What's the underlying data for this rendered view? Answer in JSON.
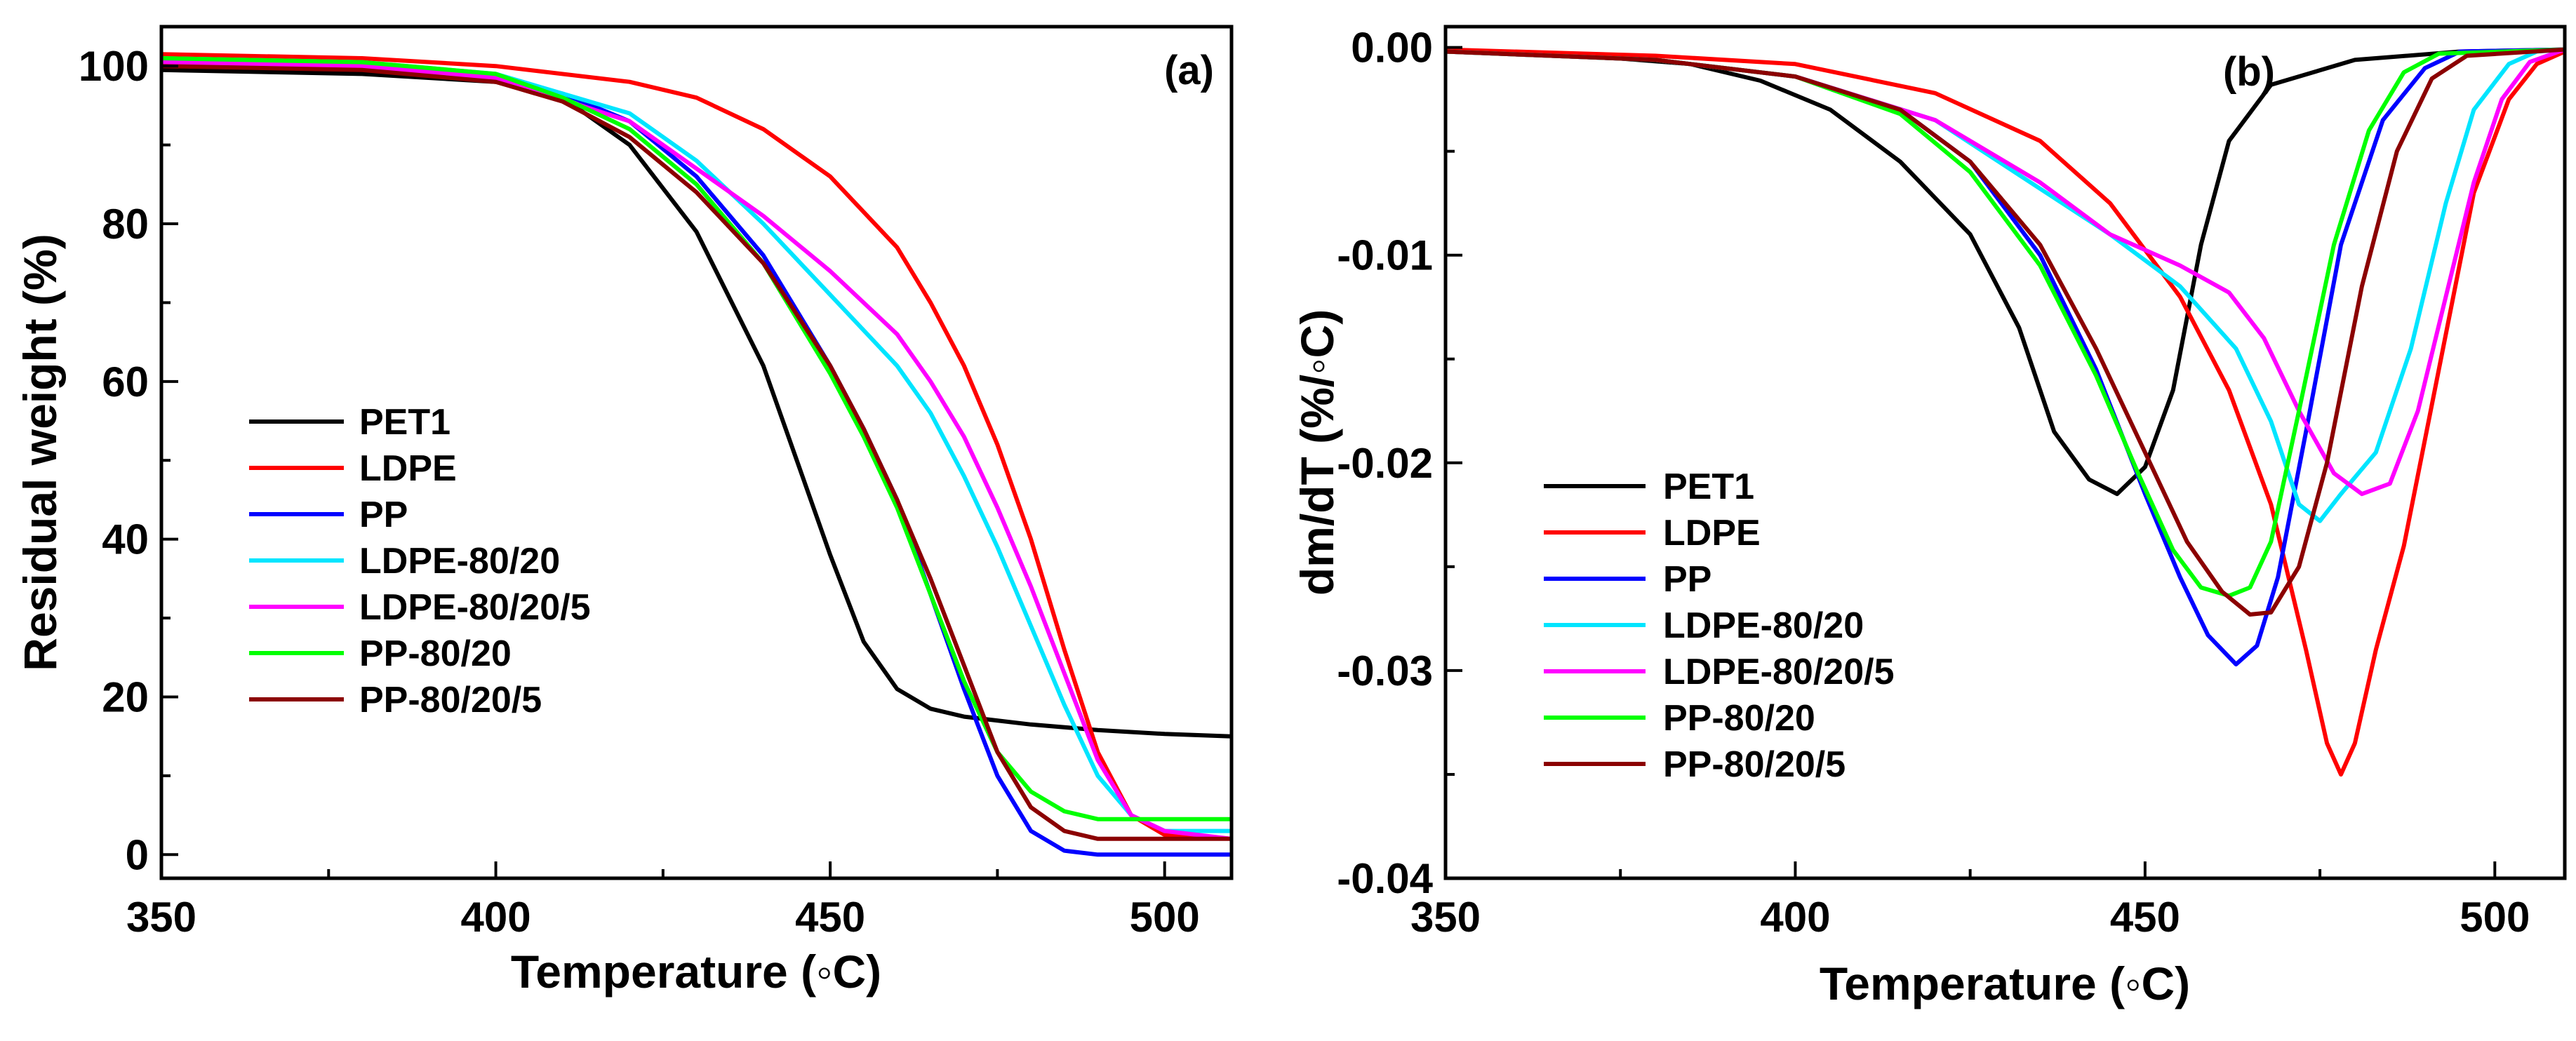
{
  "chart_data": [
    {
      "type": "line",
      "panel": "(a)",
      "xlabel": "Temperature (◦C)",
      "ylabel": "Residual weight (%)",
      "xlim": [
        350,
        510
      ],
      "ylim": [
        -3,
        105
      ],
      "xticks": [
        350,
        400,
        450,
        500
      ],
      "yticks": [
        0,
        20,
        40,
        60,
        80,
        100
      ],
      "legend_position": "center-left",
      "series": [
        {
          "name": "PET1",
          "color": "#000000",
          "points": [
            [
              350,
              99.5
            ],
            [
              380,
              99
            ],
            [
              400,
              98
            ],
            [
              410,
              96
            ],
            [
              420,
              90
            ],
            [
              430,
              79
            ],
            [
              440,
              62
            ],
            [
              445,
              50
            ],
            [
              450,
              38
            ],
            [
              455,
              27
            ],
            [
              460,
              21
            ],
            [
              465,
              18.5
            ],
            [
              470,
              17.5
            ],
            [
              480,
              16.5
            ],
            [
              490,
              15.8
            ],
            [
              500,
              15.3
            ],
            [
              510,
              15
            ]
          ]
        },
        {
          "name": "LDPE",
          "color": "#ff0000",
          "points": [
            [
              350,
              101.5
            ],
            [
              380,
              101
            ],
            [
              400,
              100
            ],
            [
              420,
              98
            ],
            [
              430,
              96
            ],
            [
              440,
              92
            ],
            [
              450,
              86
            ],
            [
              460,
              77
            ],
            [
              465,
              70
            ],
            [
              470,
              62
            ],
            [
              475,
              52
            ],
            [
              480,
              40
            ],
            [
              485,
              26
            ],
            [
              490,
              13
            ],
            [
              495,
              5
            ],
            [
              500,
              2.5
            ],
            [
              510,
              2
            ]
          ]
        },
        {
          "name": "PP",
          "color": "#0000ff",
          "points": [
            [
              350,
              100.5
            ],
            [
              380,
              100
            ],
            [
              400,
              98.5
            ],
            [
              410,
              96.5
            ],
            [
              420,
              93
            ],
            [
              430,
              86
            ],
            [
              440,
              76
            ],
            [
              450,
              62
            ],
            [
              455,
              54
            ],
            [
              460,
              45
            ],
            [
              465,
              33
            ],
            [
              470,
              21
            ],
            [
              475,
              10
            ],
            [
              480,
              3
            ],
            [
              485,
              0.5
            ],
            [
              490,
              0
            ],
            [
              510,
              0
            ]
          ]
        },
        {
          "name": "LDPE-80/20",
          "color": "#00e5ff",
          "points": [
            [
              350,
              101
            ],
            [
              380,
              100.5
            ],
            [
              400,
              99
            ],
            [
              420,
              94
            ],
            [
              430,
              88
            ],
            [
              440,
              80
            ],
            [
              450,
              71
            ],
            [
              460,
              62
            ],
            [
              465,
              56
            ],
            [
              470,
              48
            ],
            [
              475,
              39
            ],
            [
              480,
              29
            ],
            [
              485,
              19
            ],
            [
              490,
              10
            ],
            [
              495,
              5
            ],
            [
              500,
              3
            ],
            [
              510,
              3
            ]
          ]
        },
        {
          "name": "LDPE-80/20/5",
          "color": "#ff00ff",
          "points": [
            [
              350,
              100.5
            ],
            [
              380,
              100
            ],
            [
              400,
              98.5
            ],
            [
              420,
              93
            ],
            [
              430,
              87
            ],
            [
              440,
              81
            ],
            [
              450,
              74
            ],
            [
              460,
              66
            ],
            [
              465,
              60
            ],
            [
              470,
              53
            ],
            [
              475,
              44
            ],
            [
              480,
              34
            ],
            [
              485,
              23
            ],
            [
              490,
              12
            ],
            [
              495,
              5
            ],
            [
              500,
              3
            ],
            [
              510,
              2
            ]
          ]
        },
        {
          "name": "PP-80/20",
          "color": "#00ff00",
          "points": [
            [
              350,
              101
            ],
            [
              380,
              100.5
            ],
            [
              400,
              99
            ],
            [
              410,
              96
            ],
            [
              420,
              92
            ],
            [
              430,
              85
            ],
            [
              440,
              75
            ],
            [
              450,
              61
            ],
            [
              455,
              53
            ],
            [
              460,
              44
            ],
            [
              465,
              33
            ],
            [
              470,
              22
            ],
            [
              475,
              13
            ],
            [
              480,
              8
            ],
            [
              485,
              5.5
            ],
            [
              490,
              4.5
            ],
            [
              510,
              4.5
            ]
          ]
        },
        {
          "name": "PP-80/20/5",
          "color": "#8b0000",
          "points": [
            [
              350,
              100
            ],
            [
              380,
              99.5
            ],
            [
              400,
              98
            ],
            [
              410,
              95.5
            ],
            [
              420,
              91
            ],
            [
              430,
              84
            ],
            [
              440,
              75
            ],
            [
              450,
              62
            ],
            [
              455,
              54
            ],
            [
              460,
              45
            ],
            [
              465,
              35
            ],
            [
              470,
              24
            ],
            [
              475,
              13
            ],
            [
              480,
              6
            ],
            [
              485,
              3
            ],
            [
              490,
              2
            ],
            [
              510,
              2
            ]
          ]
        }
      ]
    },
    {
      "type": "line",
      "panel": "(b)",
      "xlabel": "Temperature (◦C)",
      "ylabel": "dm/dT (%/◦C)",
      "xlim": [
        350,
        510
      ],
      "ylim": [
        -0.04,
        0.001
      ],
      "xticks": [
        350,
        400,
        450,
        500
      ],
      "yticks": [
        0.0,
        -0.01,
        -0.02,
        -0.03,
        -0.04
      ],
      "ytick_labels": [
        "0.00",
        "-0.01",
        "-0.02",
        "-0.03",
        "-0.04"
      ],
      "legend_position": "lower-left",
      "series": [
        {
          "name": "PET1",
          "color": "#000000",
          "points": [
            [
              350,
              -0.0002
            ],
            [
              370,
              -0.0004
            ],
            [
              385,
              -0.0008
            ],
            [
              395,
              -0.0016
            ],
            [
              405,
              -0.003
            ],
            [
              415,
              -0.0055
            ],
            [
              425,
              -0.009
            ],
            [
              432,
              -0.0135
            ],
            [
              437,
              -0.0185
            ],
            [
              442,
              -0.0208
            ],
            [
              446,
              -0.0215
            ],
            [
              450,
              -0.0202
            ],
            [
              454,
              -0.0165
            ],
            [
              458,
              -0.0095
            ],
            [
              462,
              -0.0045
            ],
            [
              468,
              -0.0018
            ],
            [
              480,
              -0.0006
            ],
            [
              495,
              -0.0002
            ],
            [
              510,
              -0.0001
            ]
          ]
        },
        {
          "name": "LDPE",
          "color": "#ff0000",
          "points": [
            [
              350,
              -0.0001
            ],
            [
              380,
              -0.0004
            ],
            [
              400,
              -0.0008
            ],
            [
              420,
              -0.0022
            ],
            [
              435,
              -0.0045
            ],
            [
              445,
              -0.0075
            ],
            [
              455,
              -0.012
            ],
            [
              462,
              -0.0165
            ],
            [
              468,
              -0.022
            ],
            [
              473,
              -0.029
            ],
            [
              476,
              -0.0335
            ],
            [
              478,
              -0.035
            ],
            [
              480,
              -0.0335
            ],
            [
              483,
              -0.029
            ],
            [
              487,
              -0.024
            ],
            [
              492,
              -0.0155
            ],
            [
              497,
              -0.007
            ],
            [
              502,
              -0.0025
            ],
            [
              506,
              -0.0008
            ],
            [
              510,
              -0.0002
            ]
          ]
        },
        {
          "name": "PP",
          "color": "#0000ff",
          "points": [
            [
              350,
              -0.0002
            ],
            [
              380,
              -0.0006
            ],
            [
              400,
              -0.0014
            ],
            [
              415,
              -0.003
            ],
            [
              425,
              -0.0055
            ],
            [
              435,
              -0.01
            ],
            [
              443,
              -0.0155
            ],
            [
              450,
              -0.0215
            ],
            [
              455,
              -0.0255
            ],
            [
              459,
              -0.0283
            ],
            [
              463,
              -0.0297
            ],
            [
              466,
              -0.0288
            ],
            [
              469,
              -0.0255
            ],
            [
              473,
              -0.0185
            ],
            [
              478,
              -0.0095
            ],
            [
              484,
              -0.0035
            ],
            [
              490,
              -0.001
            ],
            [
              495,
              -0.0002
            ],
            [
              510,
              -0.0001
            ]
          ]
        },
        {
          "name": "LDPE-80/20",
          "color": "#00e5ff",
          "points": [
            [
              350,
              -0.0002
            ],
            [
              380,
              -0.0006
            ],
            [
              400,
              -0.0014
            ],
            [
              420,
              -0.0035
            ],
            [
              435,
              -0.0068
            ],
            [
              445,
              -0.009
            ],
            [
              455,
              -0.0115
            ],
            [
              463,
              -0.0145
            ],
            [
              468,
              -0.018
            ],
            [
              472,
              -0.022
            ],
            [
              475,
              -0.0228
            ],
            [
              478,
              -0.0215
            ],
            [
              483,
              -0.0195
            ],
            [
              488,
              -0.0145
            ],
            [
              493,
              -0.0075
            ],
            [
              497,
              -0.003
            ],
            [
              502,
              -0.0008
            ],
            [
              506,
              -0.0002
            ],
            [
              510,
              -0.0001
            ]
          ]
        },
        {
          "name": "LDPE-80/20/5",
          "color": "#ff00ff",
          "points": [
            [
              350,
              -0.0002
            ],
            [
              380,
              -0.0006
            ],
            [
              400,
              -0.0014
            ],
            [
              420,
              -0.0035
            ],
            [
              435,
              -0.0065
            ],
            [
              445,
              -0.009
            ],
            [
              455,
              -0.0105
            ],
            [
              462,
              -0.0118
            ],
            [
              467,
              -0.014
            ],
            [
              472,
              -0.0175
            ],
            [
              477,
              -0.0205
            ],
            [
              481,
              -0.0215
            ],
            [
              485,
              -0.021
            ],
            [
              489,
              -0.0175
            ],
            [
              493,
              -0.012
            ],
            [
              497,
              -0.0065
            ],
            [
              501,
              -0.0025
            ],
            [
              505,
              -0.0007
            ],
            [
              510,
              -0.0001
            ]
          ]
        },
        {
          "name": "PP-80/20",
          "color": "#00ff00",
          "points": [
            [
              350,
              -0.0002
            ],
            [
              380,
              -0.0006
            ],
            [
              400,
              -0.0014
            ],
            [
              415,
              -0.0032
            ],
            [
              425,
              -0.006
            ],
            [
              435,
              -0.0105
            ],
            [
              443,
              -0.0158
            ],
            [
              449,
              -0.0205
            ],
            [
              454,
              -0.0242
            ],
            [
              458,
              -0.026
            ],
            [
              462,
              -0.0264
            ],
            [
              465,
              -0.026
            ],
            [
              468,
              -0.0238
            ],
            [
              472,
              -0.0175
            ],
            [
              477,
              -0.0095
            ],
            [
              482,
              -0.004
            ],
            [
              487,
              -0.0012
            ],
            [
              492,
              -0.0003
            ],
            [
              510,
              -0.0001
            ]
          ]
        },
        {
          "name": "PP-80/20/5",
          "color": "#8b0000",
          "points": [
            [
              350,
              -0.0002
            ],
            [
              380,
              -0.0006
            ],
            [
              400,
              -0.0014
            ],
            [
              415,
              -0.003
            ],
            [
              425,
              -0.0055
            ],
            [
              435,
              -0.0095
            ],
            [
              443,
              -0.0145
            ],
            [
              450,
              -0.0195
            ],
            [
              456,
              -0.0238
            ],
            [
              461,
              -0.0262
            ],
            [
              465,
              -0.0273
            ],
            [
              468,
              -0.0272
            ],
            [
              472,
              -0.025
            ],
            [
              476,
              -0.02
            ],
            [
              481,
              -0.0115
            ],
            [
              486,
              -0.005
            ],
            [
              491,
              -0.0015
            ],
            [
              496,
              -0.0004
            ],
            [
              510,
              -0.0001
            ]
          ]
        }
      ]
    }
  ]
}
